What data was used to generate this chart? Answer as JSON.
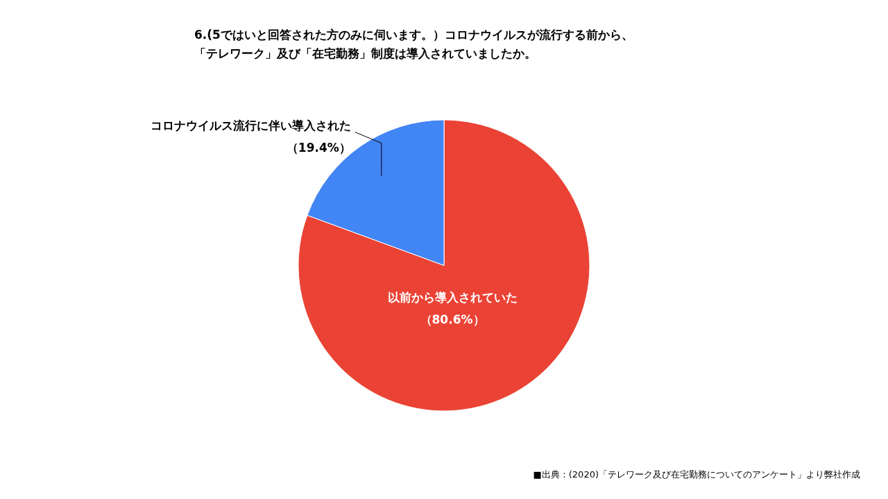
{
  "chart_data": {
    "type": "pie",
    "title": "6.(5ではいと回答された方のみに伺います。）コロナウイルスが流行する前から、",
    "subtitle": "「テレワーク」及び「在宅勤務」制度は導入されていましたか。",
    "categories": [
      "以前から導入されていた",
      "コロナウイルス流行に伴い導入された"
    ],
    "values": [
      80.6,
      19.4
    ],
    "colors": [
      "#ea4335",
      "#4285f4"
    ],
    "value_labels": [
      "（80.6%）",
      "（19.4%）"
    ],
    "annotations": [
      "■出典：(2020)「テレワーク及び在宅勤務についてのアンケート」より弊社作成"
    ]
  }
}
